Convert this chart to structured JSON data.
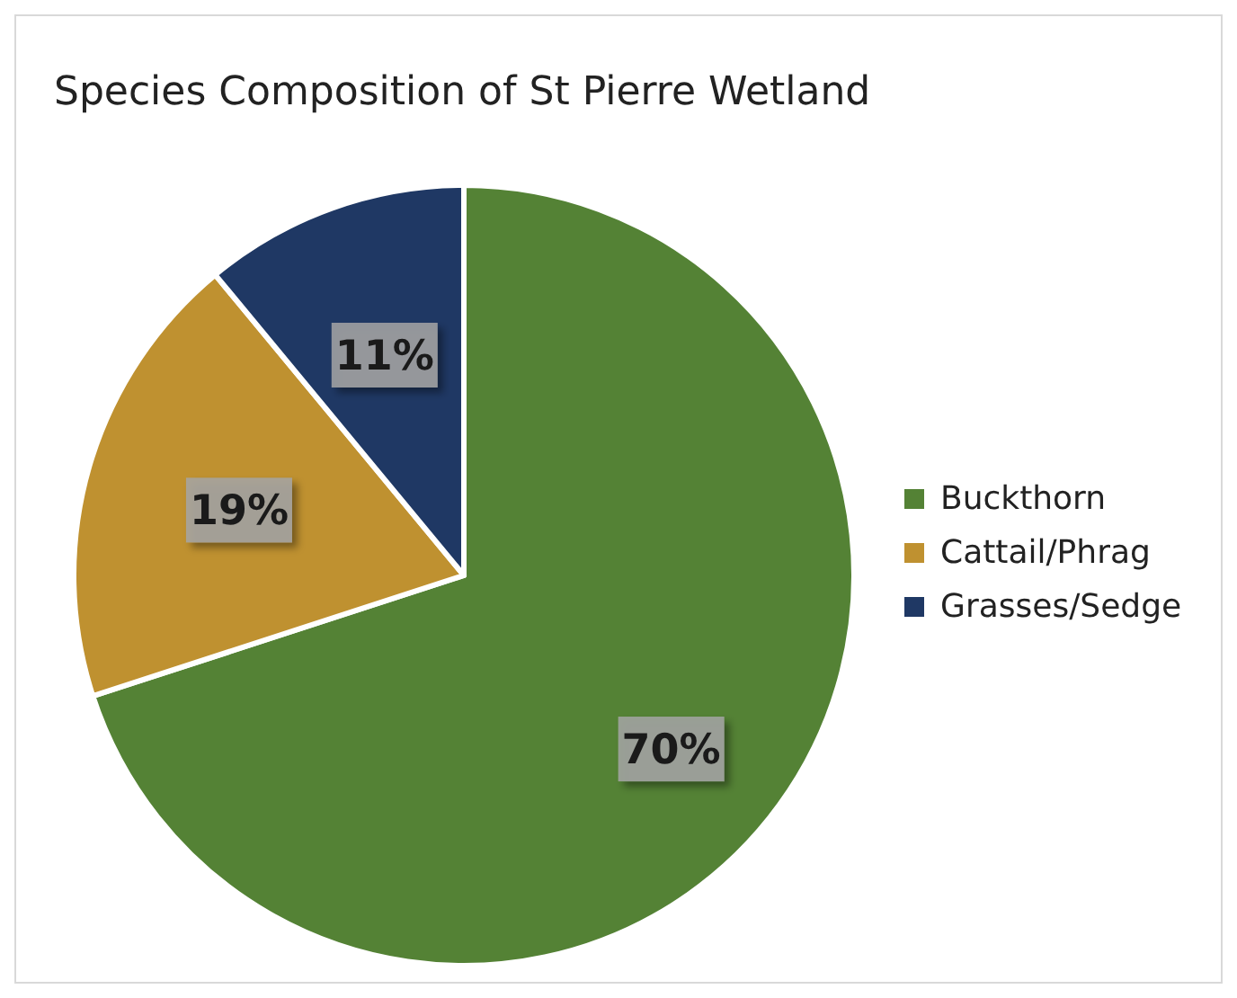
{
  "chart_data": {
    "type": "pie",
    "title": "Species Composition of St Pierre Wetland",
    "categories": [
      "Buckthorn",
      "Cattail/Phrag",
      "Grasses/Sedge"
    ],
    "values": [
      70,
      19,
      11
    ],
    "value_labels": [
      "70%",
      "19%",
      "11%"
    ],
    "colors": [
      "#548235",
      "#bf9130",
      "#1f3864"
    ],
    "legend": "right"
  }
}
